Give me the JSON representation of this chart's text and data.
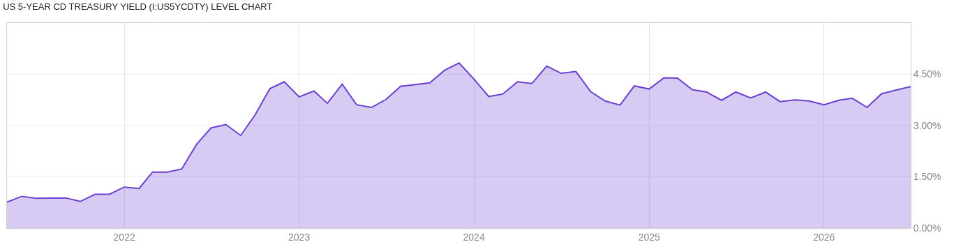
{
  "chart_data": {
    "type": "area",
    "title": "US 5-YEAR CD TREASURY YIELD (I:US5YCDTY) LEVEL CHART",
    "x": [
      "2021-05",
      "2021-06",
      "2021-07",
      "2021-08",
      "2021-09",
      "2021-10",
      "2021-11",
      "2021-12",
      "2022-01",
      "2022-02",
      "2022-03",
      "2022-04",
      "2022-05",
      "2022-06",
      "2022-07",
      "2022-08",
      "2022-09",
      "2022-10",
      "2022-11",
      "2022-12",
      "2023-01",
      "2023-02",
      "2023-03",
      "2023-04",
      "2023-05",
      "2023-06",
      "2023-07",
      "2023-08",
      "2023-09",
      "2023-10",
      "2023-11",
      "2023-12",
      "2024-01",
      "2024-02",
      "2024-03",
      "2024-04",
      "2024-05",
      "2024-06",
      "2024-07",
      "2024-08",
      "2024-09",
      "2024-10",
      "2024-11",
      "2024-12",
      "2025-01",
      "2025-02",
      "2025-03",
      "2025-04",
      "2025-05",
      "2025-06",
      "2025-07",
      "2025-08",
      "2025-09",
      "2025-10",
      "2025-11",
      "2025-12",
      "2026-01",
      "2026-02",
      "2026-03",
      "2026-04",
      "2026-05",
      "2026-06",
      "2026-07"
    ],
    "series": [
      {
        "color": "#6c3fd1",
        "values": [
          0.76,
          0.93,
          0.87,
          0.88,
          0.88,
          0.78,
          0.99,
          0.99,
          1.2,
          1.16,
          1.64,
          1.64,
          1.73,
          2.45,
          2.93,
          3.03,
          2.71,
          3.31,
          4.08,
          4.28,
          3.84,
          4.01,
          3.65,
          4.21,
          3.61,
          3.53,
          3.76,
          4.15,
          4.2,
          4.25,
          4.62,
          4.83,
          4.36,
          3.85,
          3.92,
          4.28,
          4.23,
          4.74,
          4.53,
          4.58,
          3.99,
          3.72,
          3.6,
          4.16,
          4.07,
          4.4,
          4.39,
          4.05,
          3.98,
          3.74,
          3.98,
          3.81,
          3.98,
          3.7,
          3.75,
          3.72,
          3.61,
          3.74,
          3.8,
          3.53,
          3.93,
          4.04,
          4.14
        ]
      }
    ],
    "xlim": [
      "2021-05",
      "2026-07"
    ],
    "xticks": [
      {
        "value": "2022-01",
        "label": "2022"
      },
      {
        "value": "2023-01",
        "label": "2023"
      },
      {
        "value": "2024-01",
        "label": "2024"
      },
      {
        "value": "2025-01",
        "label": "2025"
      },
      {
        "value": "2026-01",
        "label": "2026"
      }
    ],
    "ylim": [
      0,
      6
    ],
    "yticks": [
      {
        "value": 0,
        "label": "0.00%"
      },
      {
        "value": 1.5,
        "label": "1.50%"
      },
      {
        "value": 3,
        "label": "3.00%"
      },
      {
        "value": 4.5,
        "label": "4.50%"
      }
    ],
    "grid": true
  }
}
